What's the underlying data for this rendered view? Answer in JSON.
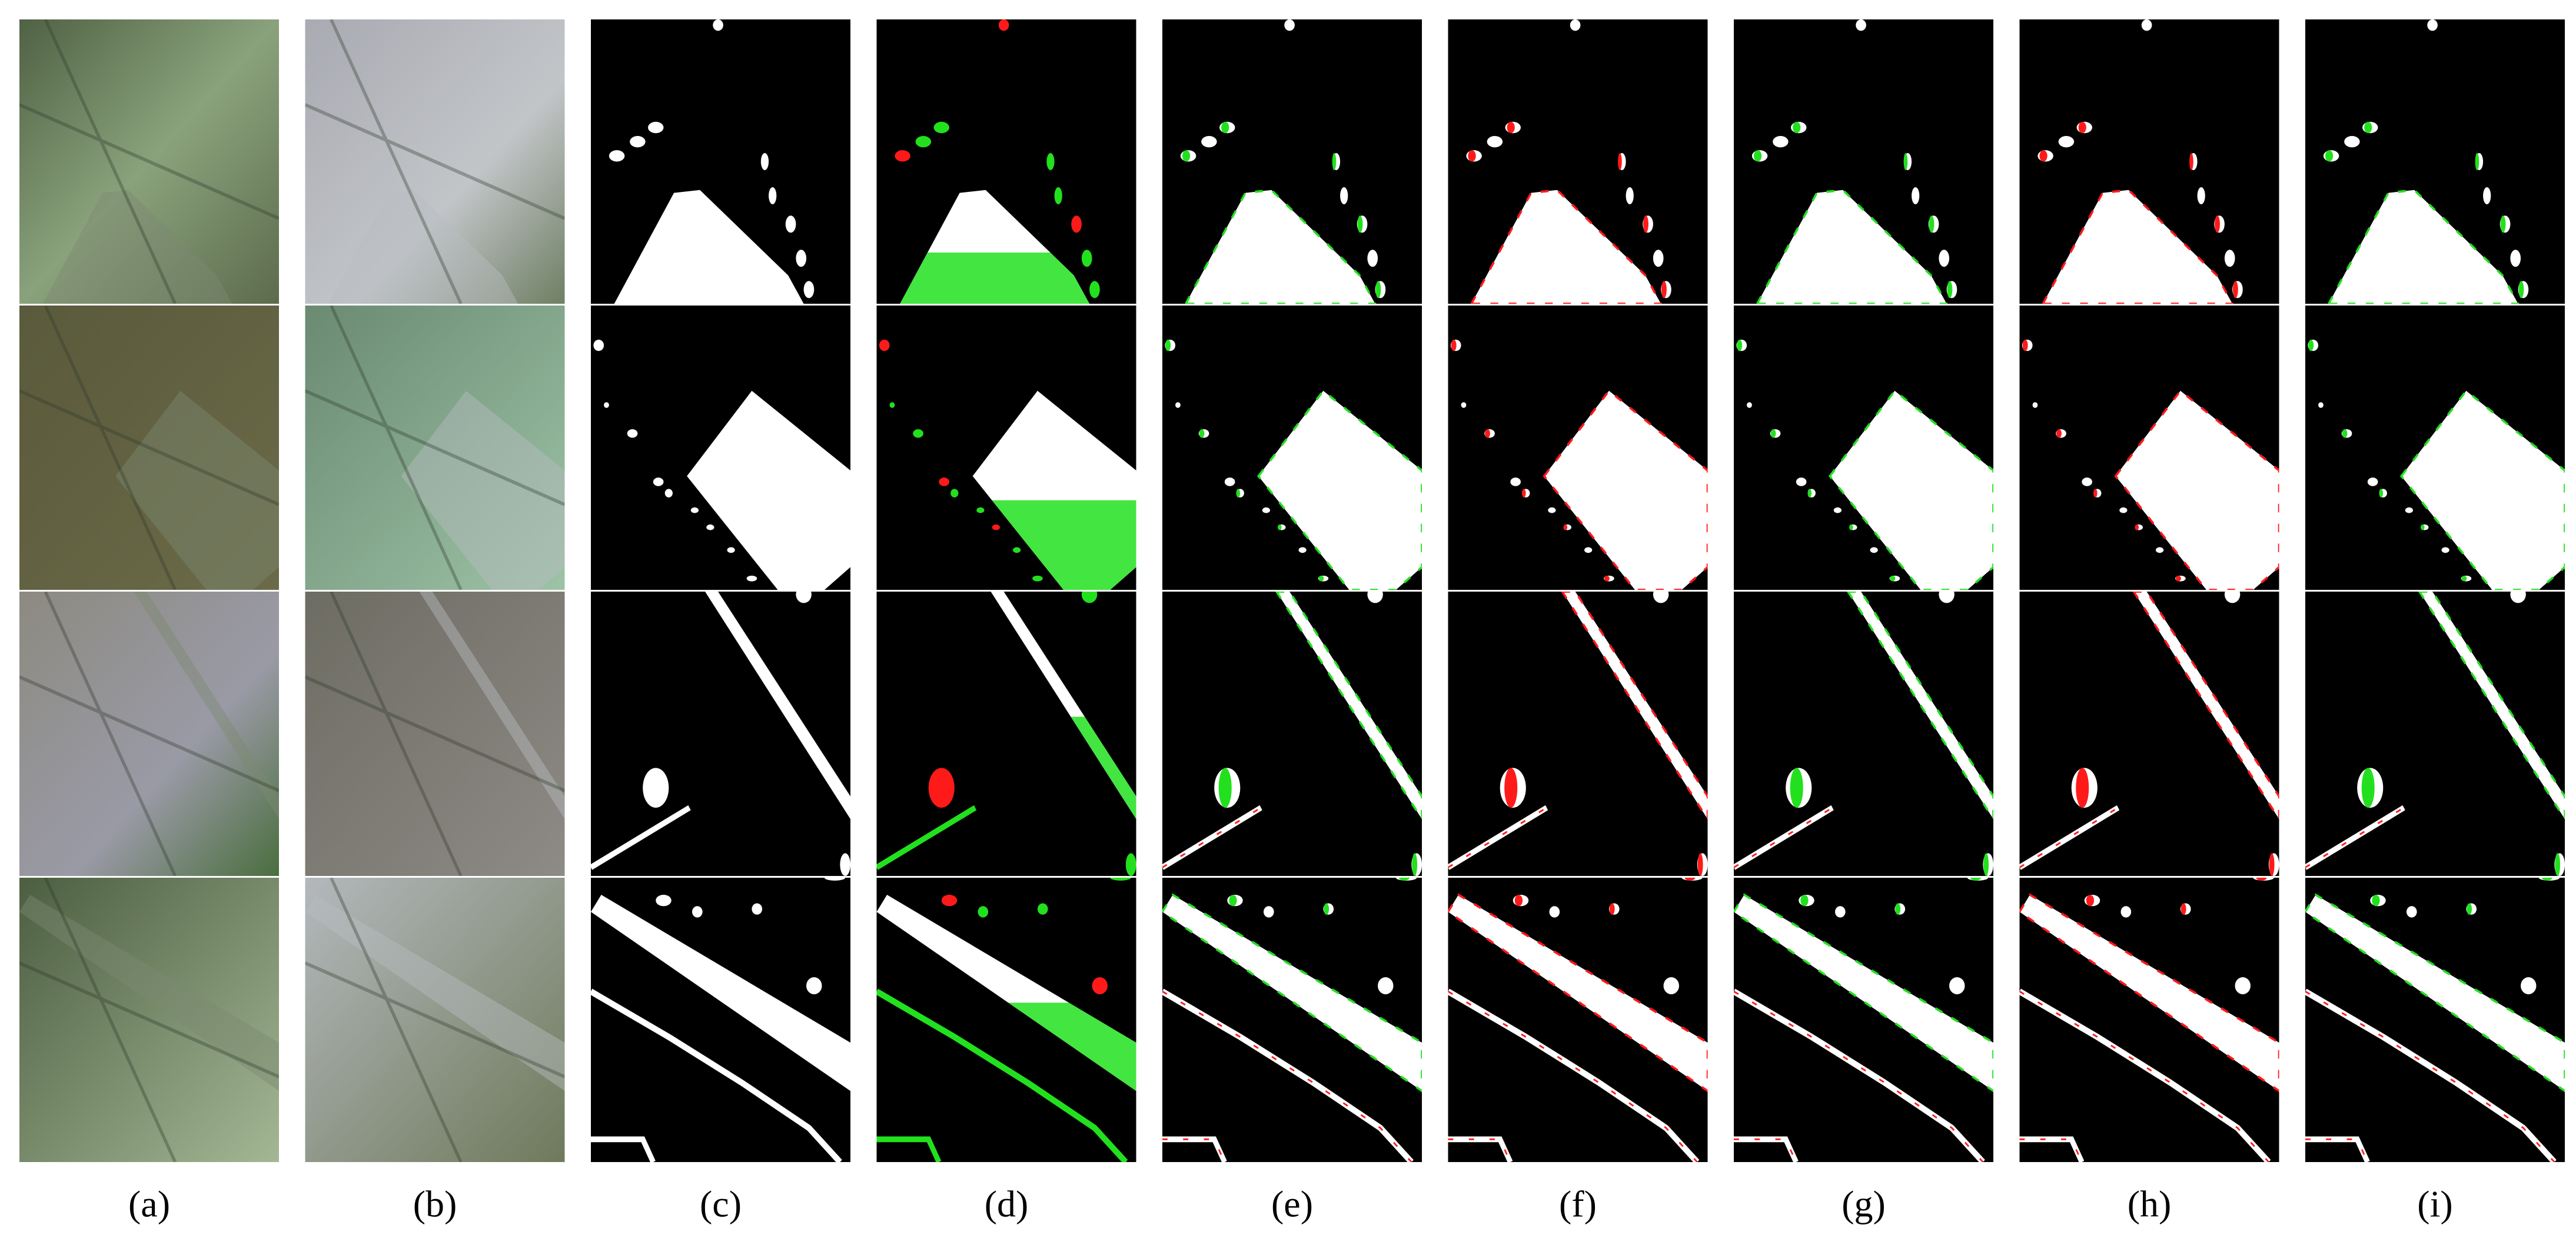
{
  "figure": {
    "labels": [
      "(a)",
      "(b)",
      "(c)",
      "(d)",
      "(e)",
      "(f)",
      "(g)",
      "(h)",
      "(i)"
    ]
  }
}
